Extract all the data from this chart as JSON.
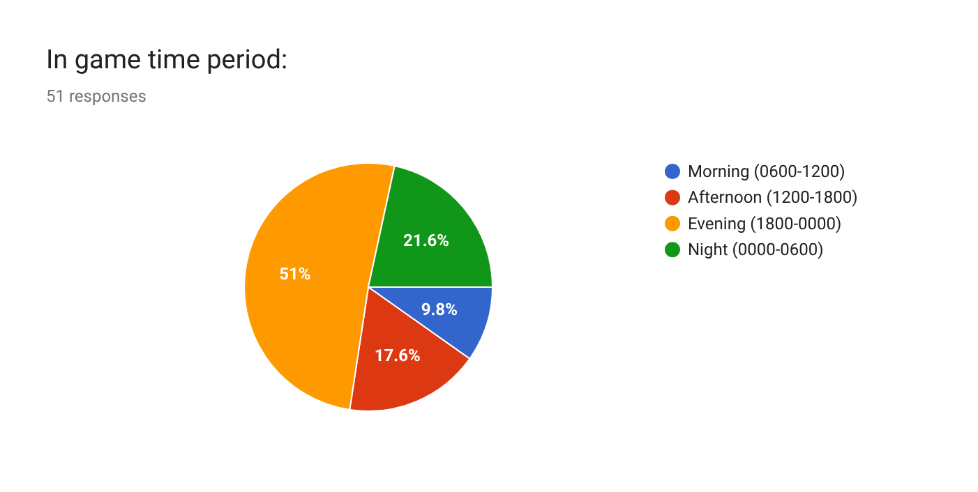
{
  "chart_data": {
    "type": "pie",
    "title": "In game time period:",
    "subtitle": "51 responses",
    "categories": [
      "Morning (0600-1200)",
      "Afternoon (1200-1800)",
      "Evening (1800-0000)",
      "Night (0000-0600)"
    ],
    "values": [
      9.8,
      17.6,
      51,
      21.6
    ],
    "value_labels": [
      "9.8%",
      "17.6%",
      "51%",
      "21.6%"
    ],
    "colors": [
      "#3366cc",
      "#dc3912",
      "#ff9900",
      "#109618"
    ],
    "legend": "right"
  }
}
